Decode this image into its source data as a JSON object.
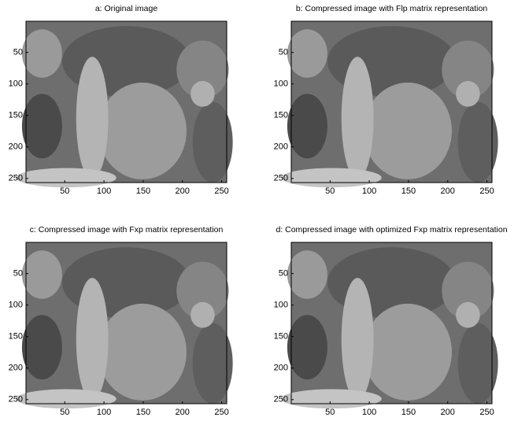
{
  "chart_data": [
    {
      "type": "image",
      "title": "a: Original image",
      "xlim": [
        0.5,
        256.5
      ],
      "ylim": [
        0.5,
        256.5
      ],
      "y_reversed": true,
      "xticks": [
        50,
        100,
        150,
        200,
        250
      ],
      "yticks": [
        50,
        100,
        150,
        200,
        250
      ]
    },
    {
      "type": "image",
      "title": "b: Compressed image with Flp matrix representation",
      "xlim": [
        0.5,
        256.5
      ],
      "ylim": [
        0.5,
        256.5
      ],
      "y_reversed": true,
      "xticks": [
        50,
        100,
        150,
        200,
        250
      ],
      "yticks": [
        50,
        100,
        150,
        200,
        250
      ]
    },
    {
      "type": "image",
      "title": "c: Compressed image with Fxp matrix representation",
      "xlim": [
        0.5,
        256.5
      ],
      "ylim": [
        0.5,
        256.5
      ],
      "y_reversed": true,
      "xticks": [
        50,
        100,
        150,
        200,
        250
      ],
      "yticks": [
        50,
        100,
        150,
        200,
        250
      ]
    },
    {
      "type": "image",
      "title": "d: Compressed image with optimized Fxp matrix representation",
      "xlim": [
        0.5,
        256.5
      ],
      "ylim": [
        0.5,
        256.5
      ],
      "y_reversed": true,
      "xticks": [
        50,
        100,
        150,
        200,
        250
      ],
      "yticks": [
        50,
        100,
        150,
        200,
        250
      ]
    }
  ]
}
